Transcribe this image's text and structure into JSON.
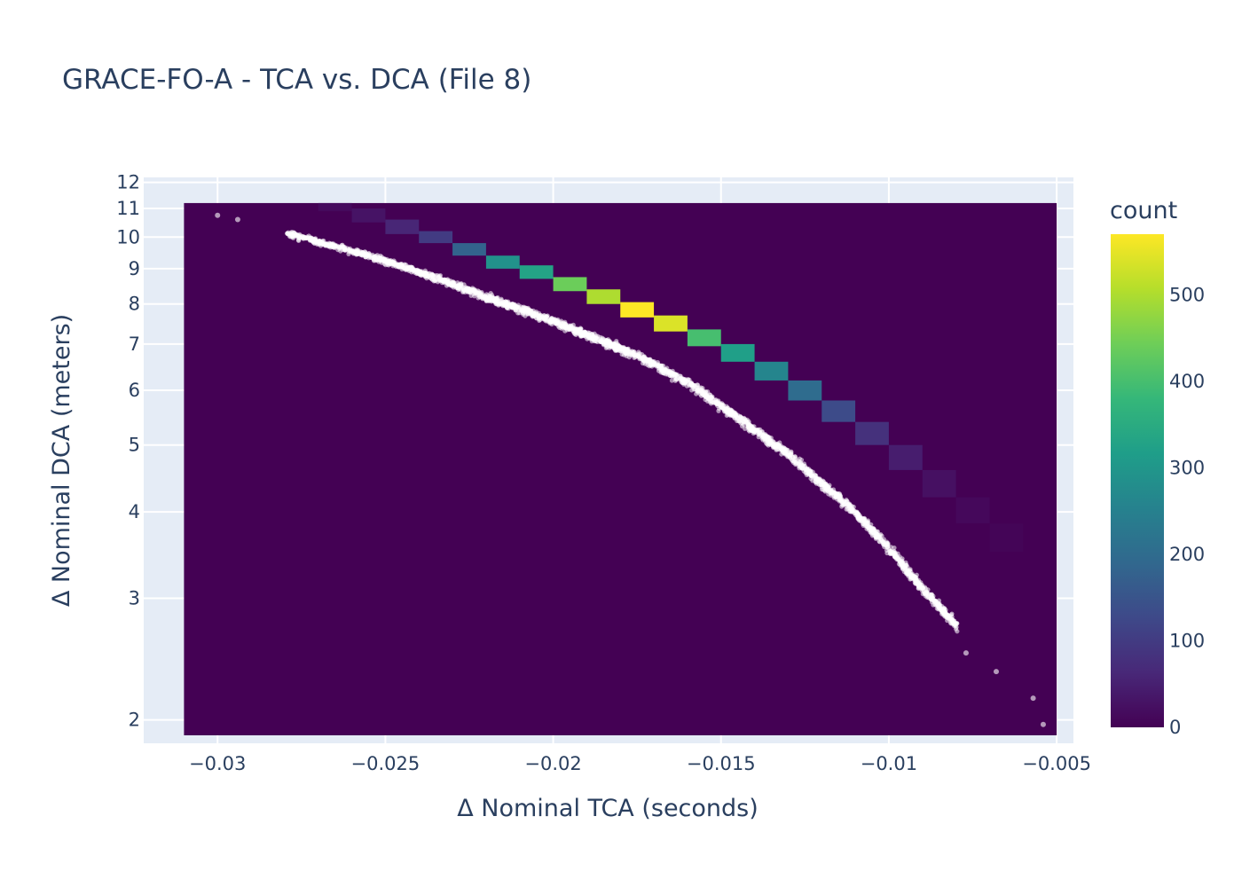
{
  "chart_data": {
    "type": "heatmap",
    "title": "GRACE-FO-A - TCA vs. DCA (File 8)",
    "xlabel": "Δ Nominal TCA (seconds)",
    "ylabel": "Δ Nominal DCA (meters)",
    "xlim": [
      -0.0322,
      -0.0045
    ],
    "ylim": [
      1.85,
      12.2
    ],
    "y_scale": "log",
    "grid": true,
    "x_ticks": [
      {
        "value": -0.03,
        "label": "−0.03"
      },
      {
        "value": -0.025,
        "label": "−0.025"
      },
      {
        "value": -0.02,
        "label": "−0.02"
      },
      {
        "value": -0.015,
        "label": "−0.015"
      },
      {
        "value": -0.01,
        "label": "−0.01"
      },
      {
        "value": -0.005,
        "label": "−0.005"
      }
    ],
    "y_ticks": [
      {
        "value": 2,
        "label": "2"
      },
      {
        "value": 3,
        "label": "3"
      },
      {
        "value": 4,
        "label": "4"
      },
      {
        "value": 5,
        "label": "5"
      },
      {
        "value": 6,
        "label": "6"
      },
      {
        "value": 7,
        "label": "7"
      },
      {
        "value": 8,
        "label": "8"
      },
      {
        "value": 9,
        "label": "9"
      },
      {
        "value": 10,
        "label": "10"
      },
      {
        "value": 11,
        "label": "11"
      },
      {
        "value": 12,
        "label": "12"
      }
    ],
    "heatmap": {
      "x_range": [
        -0.031,
        -0.005
      ],
      "y_range": [
        1.9,
        11.2
      ],
      "background_count": 0,
      "bins": [
        {
          "x0": -0.027,
          "x1": -0.026,
          "y0": 10.9,
          "y1": 11.2,
          "count": 15
        },
        {
          "x0": -0.026,
          "x1": -0.025,
          "y0": 10.5,
          "y1": 11.0,
          "count": 30
        },
        {
          "x0": -0.025,
          "x1": -0.024,
          "y0": 10.1,
          "y1": 10.6,
          "count": 60
        },
        {
          "x0": -0.024,
          "x1": -0.023,
          "y0": 9.8,
          "y1": 10.2,
          "count": 100
        },
        {
          "x0": -0.023,
          "x1": -0.022,
          "y0": 9.4,
          "y1": 9.8,
          "count": 180
        },
        {
          "x0": -0.022,
          "x1": -0.021,
          "y0": 9.0,
          "y1": 9.4,
          "count": 290
        },
        {
          "x0": -0.021,
          "x1": -0.02,
          "y0": 8.7,
          "y1": 9.1,
          "count": 330
        },
        {
          "x0": -0.02,
          "x1": -0.019,
          "y0": 8.35,
          "y1": 8.75,
          "count": 440
        },
        {
          "x0": -0.019,
          "x1": -0.018,
          "y0": 8.0,
          "y1": 8.4,
          "count": 500
        },
        {
          "x0": -0.018,
          "x1": -0.017,
          "y0": 7.65,
          "y1": 8.05,
          "count": 570
        },
        {
          "x0": -0.017,
          "x1": -0.016,
          "y0": 7.3,
          "y1": 7.7,
          "count": 540
        },
        {
          "x0": -0.016,
          "x1": -0.015,
          "y0": 6.95,
          "y1": 7.35,
          "count": 400
        },
        {
          "x0": -0.015,
          "x1": -0.014,
          "y0": 6.6,
          "y1": 7.0,
          "count": 320
        },
        {
          "x0": -0.014,
          "x1": -0.013,
          "y0": 6.2,
          "y1": 6.6,
          "count": 260
        },
        {
          "x0": -0.013,
          "x1": -0.012,
          "y0": 5.8,
          "y1": 6.2,
          "count": 200
        },
        {
          "x0": -0.012,
          "x1": -0.011,
          "y0": 5.4,
          "y1": 5.8,
          "count": 130
        },
        {
          "x0": -0.011,
          "x1": -0.01,
          "y0": 5.0,
          "y1": 5.4,
          "count": 80
        },
        {
          "x0": -0.01,
          "x1": -0.009,
          "y0": 4.6,
          "y1": 5.0,
          "count": 45
        },
        {
          "x0": -0.009,
          "x1": -0.008,
          "y0": 4.2,
          "y1": 4.6,
          "count": 25
        },
        {
          "x0": -0.008,
          "x1": -0.007,
          "y0": 3.85,
          "y1": 4.2,
          "count": 12
        },
        {
          "x0": -0.007,
          "x1": -0.006,
          "y0": 3.5,
          "y1": 3.85,
          "count": 6
        }
      ]
    },
    "scatter": {
      "color": "#ffffff",
      "curve_points": [
        {
          "x": -0.031,
          "y": 11.1
        },
        {
          "x": -0.03,
          "y": 10.75
        },
        {
          "x": -0.028,
          "y": 10.15
        },
        {
          "x": -0.026,
          "y": 9.55
        },
        {
          "x": -0.025,
          "y": 9.25
        },
        {
          "x": -0.024,
          "y": 8.9
        },
        {
          "x": -0.023,
          "y": 8.55
        },
        {
          "x": -0.022,
          "y": 8.2
        },
        {
          "x": -0.02,
          "y": 7.55
        },
        {
          "x": -0.018,
          "y": 6.9
        },
        {
          "x": -0.017,
          "y": 6.55
        },
        {
          "x": -0.016,
          "y": 6.15
        },
        {
          "x": -0.015,
          "y": 5.7
        },
        {
          "x": -0.014,
          "y": 5.25
        },
        {
          "x": -0.013,
          "y": 4.85
        },
        {
          "x": -0.012,
          "y": 4.4
        },
        {
          "x": -0.011,
          "y": 4.0
        },
        {
          "x": -0.01,
          "y": 3.55
        },
        {
          "x": -0.009,
          "y": 3.1
        },
        {
          "x": -0.008,
          "y": 2.75
        },
        {
          "x": -0.007,
          "y": 2.45
        },
        {
          "x": -0.006,
          "y": 2.15
        },
        {
          "x": -0.0054,
          "y": 1.97
        }
      ],
      "outliers": [
        {
          "x": -0.03,
          "y": 10.75
        },
        {
          "x": -0.0294,
          "y": 10.6
        },
        {
          "x": -0.0077,
          "y": 2.5
        },
        {
          "x": -0.0068,
          "y": 2.35
        },
        {
          "x": -0.0057,
          "y": 2.15
        },
        {
          "x": -0.0054,
          "y": 1.97
        }
      ]
    },
    "colorbar": {
      "title": "count",
      "min": 0,
      "max": 570,
      "ticks": [
        0,
        100,
        200,
        300,
        400,
        500
      ],
      "colorscale": [
        "#440154",
        "#482878",
        "#3e4989",
        "#31688e",
        "#26828e",
        "#1f9e89",
        "#35b779",
        "#6ece58",
        "#b5de2b",
        "#fde725"
      ]
    }
  }
}
